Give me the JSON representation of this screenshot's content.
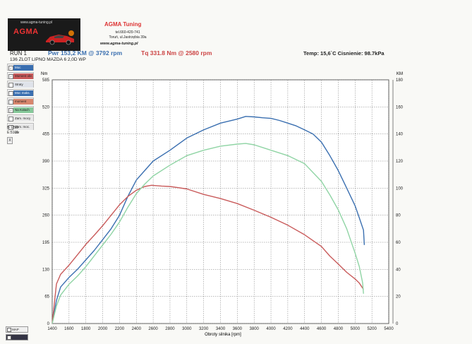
{
  "header": {
    "logo_url": "www.agma-tuning.pl",
    "logo_brand": "AGMA",
    "company": "AGMA Tuning",
    "phone": "tel.660-420-741",
    "address": "Toruń, ul.Jastrzębia 39a",
    "website": "www.agma-tuning.pl",
    "run_label": "RUN 1",
    "power_summary": "Pwr 153,2 KM @ 3792 rpm",
    "torque_summary": "Tq 331.8 Nm @ 2580 rpm",
    "temp_pressure": "Temp: 15,6`C   Cisnienie: 98.7kPa",
    "vehicle": "136 ZLOT LIPNO MAZDA 6 2,0D WP"
  },
  "legend": [
    {
      "label": "Moc",
      "checked": true,
      "color": "#3a6fb0"
    },
    {
      "label": "Moment obr.",
      "checked": true,
      "color": "#c95b5b"
    },
    {
      "label": "Straty",
      "checked": false,
      "color": "#dfe3ea"
    },
    {
      "label": "Moc maks.",
      "checked": false,
      "color": "#3a6fb0"
    },
    {
      "label": "moment",
      "checked": false,
      "color": "#d8866d"
    },
    {
      "label": "Na Kołach",
      "checked": true,
      "color": "#86c99a"
    },
    {
      "label": "Zam. mocy",
      "checked": false,
      "color": "#e8e8e8"
    },
    {
      "label": "Zam. moc. obr",
      "checked": false,
      "color": "#e8e8e8"
    }
  ],
  "side": {
    "line1": "B:1250",
    "line2": "E:5109",
    "button": "X"
  },
  "bottom_buttons": [
    {
      "label": "MAP"
    },
    {
      "label": ""
    }
  ],
  "colors": {
    "power": "#3a6fb0",
    "torque": "#c95b5b",
    "wheel": "#8fd4a4"
  },
  "chart_data": {
    "type": "line",
    "xlabel": "Obroty silnika [rpm]",
    "ylabel_left": "Nm",
    "ylabel_right": "KM",
    "xlim": [
      1400,
      5400
    ],
    "x_ticks": [
      1400,
      1600,
      1800,
      2000,
      2200,
      2400,
      2600,
      2800,
      3000,
      3200,
      3400,
      3600,
      3800,
      4000,
      4200,
      4400,
      4600,
      4800,
      5000,
      5200,
      5400
    ],
    "ylim_left": [
      0,
      585
    ],
    "y_ticks_left": [
      0,
      65,
      130,
      195,
      260,
      325,
      390,
      455,
      520,
      585
    ],
    "ylim_right": [
      0,
      180
    ],
    "y_ticks_right": [
      0,
      20,
      40,
      60,
      80,
      100,
      120,
      140,
      160,
      180
    ],
    "grid": true,
    "series": [
      {
        "name": "Moc",
        "axis": "right",
        "x": [
          1400,
          1450,
          1500,
          1600,
          1700,
          1800,
          1900,
          2000,
          2100,
          2200,
          2300,
          2400,
          2500,
          2600,
          2800,
          3000,
          3200,
          3400,
          3600,
          3700,
          3800,
          3900,
          4000,
          4100,
          4200,
          4300,
          4400,
          4500,
          4600,
          4700,
          4800,
          4900,
          5000,
          5050,
          5100,
          5110
        ],
        "y": [
          0,
          17,
          27,
          34,
          40,
          47,
          54,
          62,
          70,
          80,
          94,
          106,
          113,
          120,
          128,
          137,
          143,
          148,
          151,
          153,
          152.6,
          152,
          151.5,
          150,
          148,
          146,
          143,
          140,
          134,
          124,
          113,
          100,
          87,
          78,
          69,
          58
        ]
      },
      {
        "name": "Moment obr.",
        "axis": "left",
        "x": [
          1400,
          1450,
          1500,
          1600,
          1700,
          1800,
          1900,
          2000,
          2100,
          2200,
          2300,
          2400,
          2500,
          2580,
          2700,
          2800,
          2900,
          3000,
          3200,
          3400,
          3600,
          3800,
          4000,
          4200,
          4400,
          4600,
          4700,
          4800,
          4900,
          5000,
          5050,
          5100
        ],
        "y": [
          0,
          95,
          118,
          140,
          165,
          190,
          212,
          235,
          260,
          285,
          305,
          320,
          329,
          331.8,
          330,
          329,
          326,
          323,
          310,
          300,
          288,
          272,
          255,
          236,
          213,
          185,
          162,
          143,
          123,
          107,
          97,
          82
        ]
      },
      {
        "name": "Na Kołach",
        "axis": "right",
        "x": [
          1400,
          1450,
          1500,
          1600,
          1700,
          1800,
          1900,
          2000,
          2100,
          2200,
          2300,
          2400,
          2500,
          2600,
          2800,
          3000,
          3200,
          3400,
          3600,
          3700,
          3800,
          3900,
          4000,
          4200,
          4400,
          4600,
          4700,
          4800,
          4900,
          5000,
          5050,
          5090,
          5100
        ],
        "y": [
          0,
          13,
          21,
          29,
          35,
          42,
          50,
          58,
          66,
          75,
          86,
          96,
          103,
          109,
          117,
          124,
          128,
          131,
          132.5,
          133,
          132,
          130,
          128,
          124,
          118,
          105,
          95,
          84,
          70,
          52,
          42,
          30,
          22
        ]
      }
    ]
  }
}
